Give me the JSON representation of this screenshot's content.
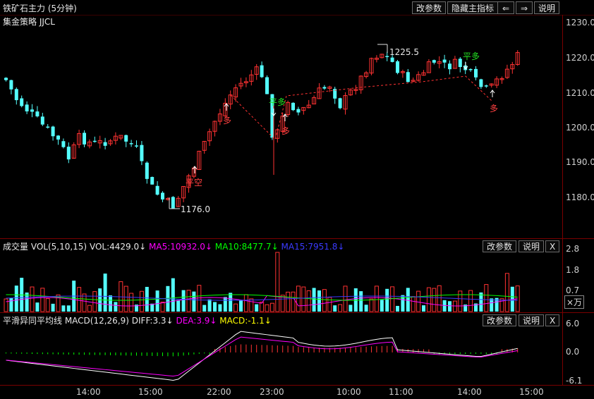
{
  "header": {
    "title": "铁矿石主力 (5分钟)",
    "buttons": [
      "改参数",
      "隐藏主指标",
      "⇐",
      "⇒",
      "说明"
    ]
  },
  "strategy": "集金策略 JJCL",
  "price_axis": [
    "1230.0",
    "1220.0",
    "1210.0",
    "1200.0",
    "1190.0",
    "1180.0"
  ],
  "annotations": {
    "high_label": "1225.5",
    "low_label": "1176.0",
    "signal_ping_duo": "平多",
    "signal_duo": "多",
    "signal_ping_kong": "平空"
  },
  "volume": {
    "title": "成交量 VOL(5,10,15)",
    "vol": "VOL:4429.0↓",
    "ma5": "MA5:10932.0↓",
    "ma10": "MA10:8477.7↓",
    "ma15": "MA15:7951.8↓",
    "axis": [
      "2.8",
      "1.8",
      "0.7"
    ],
    "unit": "×万",
    "buttons": [
      "改参数",
      "说明",
      "X"
    ]
  },
  "macd": {
    "title": "平滑异同平均线 MACD(12,26,9)",
    "diff": "DIFF:3.3↓",
    "dea": "DEA:3.9↓",
    "macd": "MACD:-1.1↓",
    "axis": [
      "6.0",
      "0.0",
      "-6.1"
    ],
    "buttons": [
      "改参数",
      "说明",
      "X"
    ]
  },
  "time_axis": [
    "14:00",
    "15:00",
    "22:00",
    "23:00",
    "10:00",
    "11:00",
    "14:00",
    "15:00"
  ],
  "colors": {
    "up": "#ff3232",
    "down": "#54ffff",
    "ma5": "#ff00ff",
    "ma10": "#00ff00",
    "ma15": "#3030ff",
    "grid": "#7a0000"
  }
}
